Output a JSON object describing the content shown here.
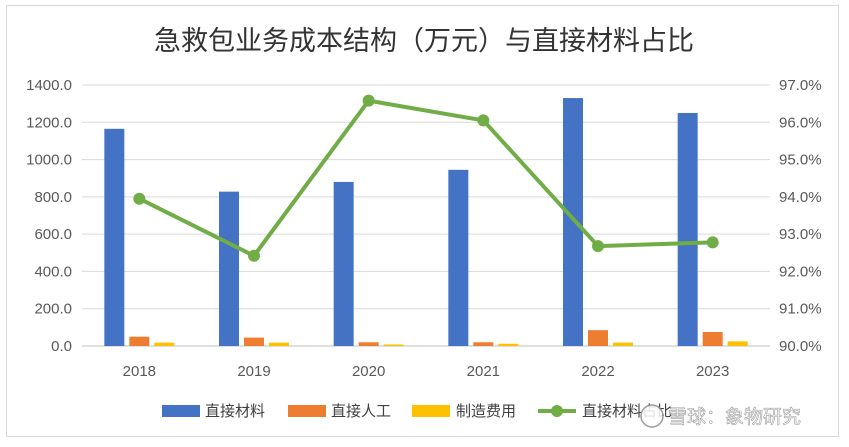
{
  "chart_data": {
    "type": "bar",
    "title": "急救包业务成本结构（万元）与直接材料占比",
    "categories": [
      "2018",
      "2019",
      "2020",
      "2021",
      "2022",
      "2023"
    ],
    "series": [
      {
        "name": "直接材料",
        "axis": "left",
        "kind": "bar",
        "color": "#4472C4",
        "values": [
          1165,
          828,
          880,
          945,
          1330,
          1250
        ]
      },
      {
        "name": "直接人工",
        "axis": "left",
        "kind": "bar",
        "color": "#ED7D31",
        "values": [
          50,
          45,
          20,
          20,
          85,
          75
        ]
      },
      {
        "name": "制造费用",
        "axis": "left",
        "kind": "bar",
        "color": "#FFC000",
        "values": [
          18,
          18,
          8,
          12,
          18,
          25
        ]
      },
      {
        "name": "直接材料占比",
        "axis": "right",
        "kind": "line",
        "color": "#70AD47",
        "values": [
          93.95,
          92.42,
          96.58,
          96.05,
          92.68,
          92.78
        ]
      }
    ],
    "left_axis": {
      "ylim": [
        0,
        1400
      ],
      "ticks": [
        "0.0",
        "200.0",
        "400.0",
        "600.0",
        "800.0",
        "1000.0",
        "1200.0",
        "1400.0"
      ]
    },
    "right_axis": {
      "ylim": [
        90,
        97
      ],
      "ticks": [
        "90.0%",
        "91.0%",
        "92.0%",
        "93.0%",
        "94.0%",
        "95.0%",
        "96.0%",
        "97.0%"
      ]
    },
    "grid": true,
    "legend_position": "bottom"
  },
  "watermark": {
    "text": "雪球：象物研究"
  }
}
